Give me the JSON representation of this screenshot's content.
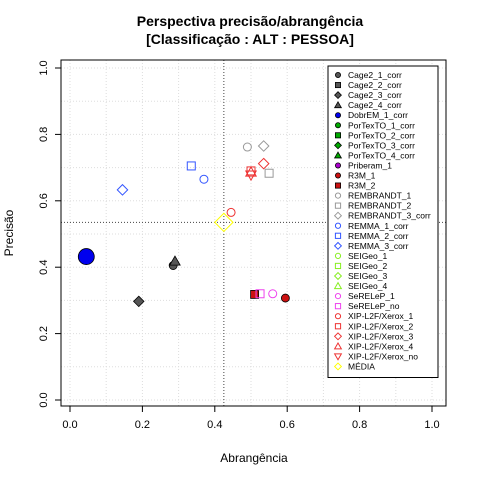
{
  "chart_data": {
    "type": "scatter",
    "title": "Perspectiva precisão/abrangência",
    "subtitle": "[Classificação : ALT : PESSOA]",
    "xlabel": "Abrangência",
    "ylabel": "Precisão",
    "xlim": [
      0,
      1
    ],
    "ylim": [
      0,
      1
    ],
    "x_ticks": [
      "0.0",
      "0.2",
      "0.4",
      "0.6",
      "0.8",
      "1.0"
    ],
    "y_ticks": [
      "0.0",
      "0.2",
      "0.4",
      "0.6",
      "0.8",
      "1.0"
    ],
    "grid": true,
    "legend_position": "right",
    "reference_lines": {
      "x": 0.425,
      "y": 0.535
    },
    "series": [
      {
        "name": "Cage2_1_corr",
        "shape": "circle",
        "color": "#555555",
        "filled": true,
        "points": [
          [
            0.285,
            0.405
          ]
        ]
      },
      {
        "name": "Cage2_2_corr",
        "shape": "square",
        "color": "#555555",
        "filled": true,
        "points": []
      },
      {
        "name": "Cage2_3_corr",
        "shape": "diamond",
        "color": "#555555",
        "filled": true,
        "points": [
          [
            0.19,
            0.297
          ]
        ]
      },
      {
        "name": "Cage2_4_corr",
        "shape": "triangle",
        "color": "#555555",
        "filled": true,
        "points": [
          [
            0.29,
            0.418
          ]
        ]
      },
      {
        "name": "DobrEM_1_corr",
        "shape": "circle",
        "color": "#0000ee",
        "filled": true,
        "points": [
          [
            0.045,
            0.432
          ]
        ]
      },
      {
        "name": "PorTexTO_1_corr",
        "shape": "circle",
        "color": "#00aa00",
        "filled": true,
        "points": []
      },
      {
        "name": "PorTexTO_2_corr",
        "shape": "square",
        "color": "#00aa00",
        "filled": true,
        "points": []
      },
      {
        "name": "PorTexTO_3_corr",
        "shape": "diamond",
        "color": "#00aa00",
        "filled": true,
        "points": []
      },
      {
        "name": "PorTexTO_4_corr",
        "shape": "triangle",
        "color": "#00aa00",
        "filled": true,
        "points": []
      },
      {
        "name": "Priberam_1",
        "shape": "circle",
        "color": "#aa00cc",
        "filled": true,
        "points": []
      },
      {
        "name": "R3M_1",
        "shape": "circle",
        "color": "#cc1111",
        "filled": true,
        "points": [
          [
            0.595,
            0.307
          ]
        ]
      },
      {
        "name": "R3M_2",
        "shape": "square",
        "color": "#cc1111",
        "filled": true,
        "points": [
          [
            0.51,
            0.318
          ]
        ]
      },
      {
        "name": "REMBRANDT_1",
        "shape": "circle",
        "color": "#999999",
        "filled": false,
        "points": [
          [
            0.49,
            0.762
          ]
        ]
      },
      {
        "name": "REMBRANDT_2",
        "shape": "square",
        "color": "#999999",
        "filled": false,
        "points": [
          [
            0.55,
            0.683
          ]
        ]
      },
      {
        "name": "REMBRANDT_3_corr",
        "shape": "diamond",
        "color": "#999999",
        "filled": false,
        "points": [
          [
            0.535,
            0.765
          ]
        ]
      },
      {
        "name": "REMMA_1_corr",
        "shape": "circle",
        "color": "#3355ff",
        "filled": false,
        "points": [
          [
            0.37,
            0.665
          ]
        ]
      },
      {
        "name": "REMMA_2_corr",
        "shape": "square",
        "color": "#3355ff",
        "filled": false,
        "points": [
          [
            0.335,
            0.705
          ]
        ]
      },
      {
        "name": "REMMA_3_corr",
        "shape": "diamond",
        "color": "#3355ff",
        "filled": false,
        "points": [
          [
            0.145,
            0.633
          ]
        ]
      },
      {
        "name": "SEIGeo_1",
        "shape": "circle",
        "color": "#88ee22",
        "filled": false,
        "points": []
      },
      {
        "name": "SEIGeo_2",
        "shape": "square",
        "color": "#88ee22",
        "filled": false,
        "points": []
      },
      {
        "name": "SEIGeo_3",
        "shape": "diamond",
        "color": "#88ee22",
        "filled": false,
        "points": []
      },
      {
        "name": "SEIGeo_4",
        "shape": "triangle",
        "color": "#88ee22",
        "filled": false,
        "points": []
      },
      {
        "name": "SeRELeP_1",
        "shape": "circle",
        "color": "#ee44ee",
        "filled": false,
        "points": [
          [
            0.56,
            0.32
          ]
        ]
      },
      {
        "name": "SeRELeP_no",
        "shape": "square",
        "color": "#ee44ee",
        "filled": false,
        "points": [
          [
            0.525,
            0.32
          ]
        ]
      },
      {
        "name": "XIP-L2F/Xerox_1",
        "shape": "circle",
        "color": "#ee3333",
        "filled": false,
        "points": [
          [
            0.445,
            0.565
          ]
        ]
      },
      {
        "name": "XIP-L2F/Xerox_2",
        "shape": "square",
        "color": "#ee3333",
        "filled": false,
        "points": [
          [
            0.5,
            0.69
          ]
        ]
      },
      {
        "name": "XIP-L2F/Xerox_3",
        "shape": "diamond",
        "color": "#ee3333",
        "filled": false,
        "points": [
          [
            0.535,
            0.712
          ]
        ]
      },
      {
        "name": "XIP-L2F/Xerox_4",
        "shape": "triangle",
        "color": "#ee3333",
        "filled": false,
        "points": [
          [
            0.5,
            0.686
          ]
        ]
      },
      {
        "name": "XIP-L2F/Xerox_no",
        "shape": "triangle-down",
        "color": "#ee3333",
        "filled": false,
        "points": [
          [
            0.5,
            0.678
          ]
        ]
      },
      {
        "name": "MÉDIA",
        "shape": "diamond",
        "color": "#ffff00",
        "filled": false,
        "points": [
          [
            0.425,
            0.535
          ]
        ]
      }
    ]
  }
}
